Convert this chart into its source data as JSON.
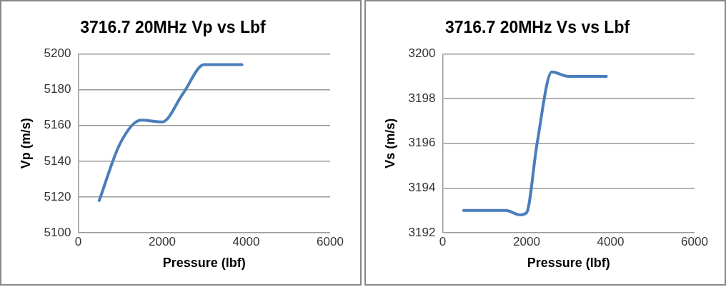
{
  "chart_data": [
    {
      "type": "line",
      "title": "3716.7 20MHz Vp vs Lbf",
      "xlabel": "Pressure (lbf)",
      "ylabel": "Vp (m/s)",
      "x": [
        500,
        1000,
        1500,
        2000,
        2500,
        3000,
        3500,
        3900
      ],
      "values": [
        5118,
        5150,
        5163,
        5162,
        5178,
        5194,
        5194,
        5194
      ],
      "color": "#4a7ebb",
      "xlim": [
        0,
        6000
      ],
      "xticks": [
        0,
        2000,
        4000,
        6000
      ],
      "ylim": [
        5100,
        5200
      ],
      "yticks": [
        5100,
        5120,
        5140,
        5160,
        5180,
        5200
      ],
      "grid": "y",
      "marker": "none"
    },
    {
      "type": "line",
      "title": "3716.7 20MHz Vs vs Lbf",
      "xlabel": "Pressure (lbf)",
      "ylabel": "Vs (m/s)",
      "x": [
        500,
        1000,
        1500,
        1850,
        2000,
        2250,
        2600,
        3000,
        3500,
        3900
      ],
      "values": [
        3193,
        3193,
        3193,
        3192.8,
        3192.9,
        3196,
        3199.2,
        3199,
        3199,
        3199
      ],
      "color": "#4a7ebb",
      "xlim": [
        0,
        6000
      ],
      "xticks": [
        0,
        2000,
        4000,
        6000
      ],
      "ylim": [
        3192,
        3200
      ],
      "yticks": [
        3192,
        3194,
        3196,
        3198,
        3200
      ],
      "grid": "y",
      "marker": "none"
    }
  ]
}
